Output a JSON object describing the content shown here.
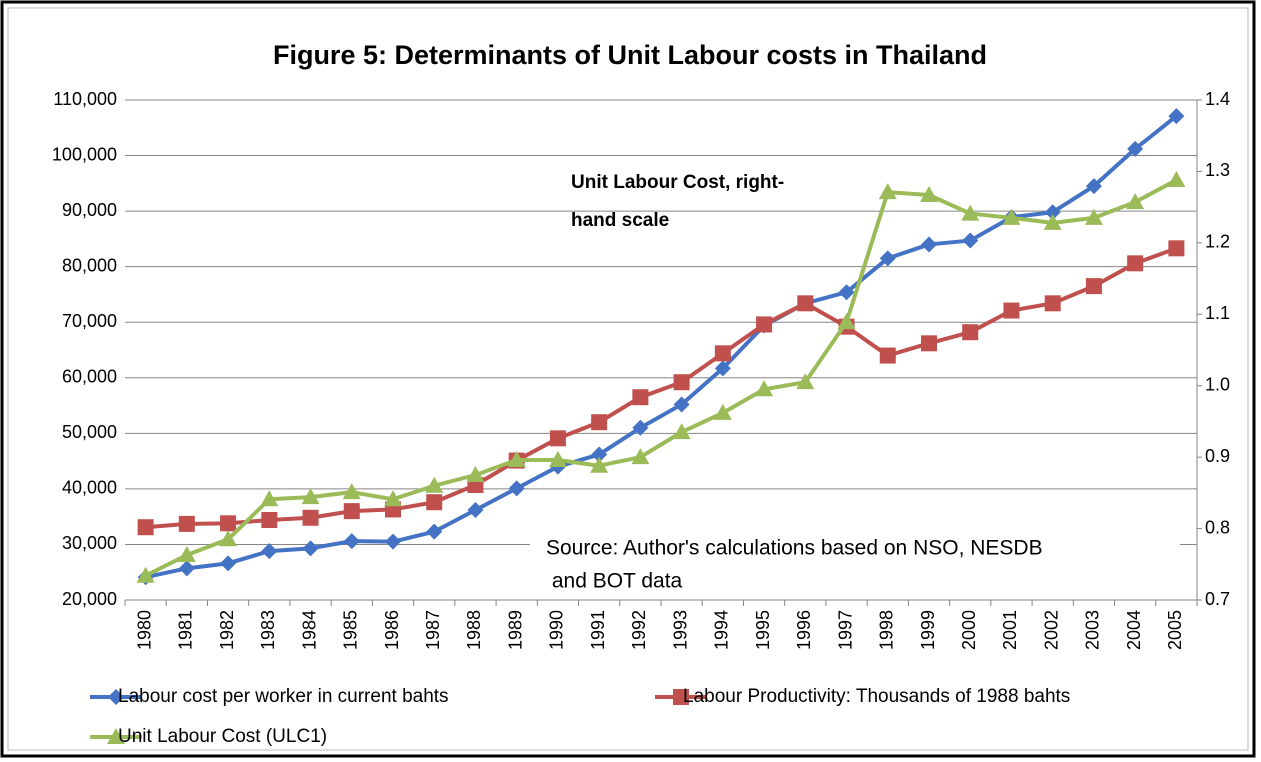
{
  "chart_data": {
    "type": "line",
    "title": "Figure 5: Determinants of Unit Labour costs in Thailand",
    "categories": [
      "1980",
      "1981",
      "1982",
      "1983",
      "1984",
      "1985",
      "1986",
      "1987",
      "1988",
      "1989",
      "1990",
      "1991",
      "1992",
      "1993",
      "1994",
      "1995",
      "1996",
      "1997",
      "1998",
      "1999",
      "2000",
      "2001",
      "2002",
      "2003",
      "2004",
      "2005"
    ],
    "series": [
      {
        "name": "Labour cost per worker in current bahts",
        "color": "#4472c4",
        "marker": "diamond",
        "values": [
          24100,
          25700,
          26600,
          28800,
          29300,
          30600,
          30500,
          32300,
          36200,
          40100,
          44000,
          46200,
          51000,
          55200,
          61700,
          69400,
          73400,
          75400,
          81500,
          84000,
          84700,
          88900,
          89800,
          94500,
          101200,
          107100
        ]
      },
      {
        "name": "Labour Productivity: Thousands of 1988 bahts",
        "color": "#c0504d",
        "marker": "square",
        "values": [
          33100,
          33700,
          33800,
          34400,
          34800,
          36000,
          36300,
          37600,
          40700,
          45100,
          49100,
          52000,
          56500,
          59200,
          64400,
          69600,
          73400,
          69200,
          64000,
          66200,
          68200,
          72100,
          73400,
          76500,
          80600,
          83300
        ]
      },
      {
        "name": "Unit Labour Cost (ULC1)",
        "color": "#9bbb59",
        "marker": "triangle",
        "axis": "y2",
        "values": [
          0.734,
          0.763,
          0.785,
          0.841,
          0.844,
          0.851,
          0.841,
          0.86,
          0.875,
          0.896,
          0.896,
          0.888,
          0.9,
          0.935,
          0.962,
          0.995,
          1.005,
          1.089,
          1.271,
          1.267,
          1.241,
          1.235,
          1.228,
          1.235,
          1.257,
          1.288
        ]
      }
    ],
    "ylim": [
      20000,
      110000
    ],
    "yticks": [
      {
        "value": 20000,
        "label": "20,000"
      },
      {
        "value": 30000,
        "label": "30,000"
      },
      {
        "value": 40000,
        "label": "40,000"
      },
      {
        "value": 50000,
        "label": "50,000"
      },
      {
        "value": 60000,
        "label": "60,000"
      },
      {
        "value": 70000,
        "label": "70,000"
      },
      {
        "value": 80000,
        "label": "80,000"
      },
      {
        "value": 90000,
        "label": "90,000"
      },
      {
        "value": 100000,
        "label": "100,000"
      },
      {
        "value": 110000,
        "label": "110,000"
      }
    ],
    "y2lim": [
      0.7,
      1.4
    ],
    "y2ticks": [
      0.7,
      0.8,
      0.9,
      {
        "value": 1,
        "label": "1.0"
      },
      1.1,
      1.2,
      1.3,
      1.4
    ],
    "grid": true,
    "legend": "bottom",
    "annotations": [
      {
        "lines": [
          "Unit Labour Cost, right-",
          "hand scale"
        ]
      },
      {
        "lines": [
          "Source: Author's calculations based on NSO, NESDB",
          " and BOT data"
        ]
      }
    ]
  }
}
